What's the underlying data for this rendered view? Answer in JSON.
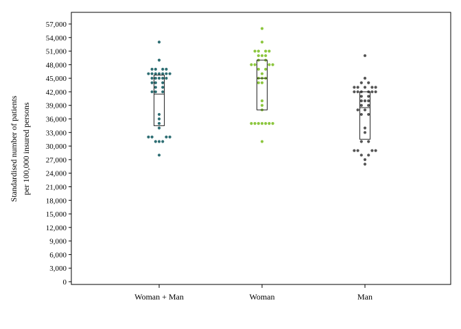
{
  "chart_data": {
    "type": "scatter",
    "subtype": "dot-strip-with-box",
    "title": "",
    "xlabel": "",
    "ylabel": [
      "Standardised number of patients",
      "per 100,000 insured persons"
    ],
    "ylim": [
      0,
      58500
    ],
    "yticks": [
      0,
      3000,
      6000,
      9000,
      12000,
      15000,
      18000,
      21000,
      24000,
      27000,
      30000,
      33000,
      36000,
      39000,
      42000,
      45000,
      48000,
      51000,
      54000,
      57000
    ],
    "ytick_labels": [
      "0",
      "3,000",
      "6,000",
      "9,000",
      "12,000",
      "15,000",
      "18,000",
      "21,000",
      "24,000",
      "27,000",
      "30,000",
      "33,000",
      "36,000",
      "39,000",
      "42,000",
      "45,000",
      "48,000",
      "51,000",
      "54,000",
      "57,000"
    ],
    "grid": false,
    "legend": "none",
    "categories": [
      "Woman + Man",
      "Woman",
      "Man"
    ],
    "series": [
      {
        "category": "Woman + Man",
        "color": "#2e6e73",
        "box": {
          "q1": 34500,
          "median": 41500,
          "q3": 45700
        },
        "points": [
          [
            0,
            53000
          ],
          [
            0,
            49000
          ],
          [
            -2,
            47000
          ],
          [
            -1,
            47000
          ],
          [
            1,
            47000
          ],
          [
            2,
            47000
          ],
          [
            -3,
            46000
          ],
          [
            -2,
            46000
          ],
          [
            -1,
            46000
          ],
          [
            0,
            46000
          ],
          [
            1,
            46000
          ],
          [
            2,
            46000
          ],
          [
            3,
            46000
          ],
          [
            -2,
            45000
          ],
          [
            -1,
            45000
          ],
          [
            0,
            45000
          ],
          [
            1,
            45000
          ],
          [
            2,
            45000
          ],
          [
            -2,
            44000
          ],
          [
            -1,
            44000
          ],
          [
            1,
            44000
          ],
          [
            -1,
            43000
          ],
          [
            1,
            43000
          ],
          [
            -2,
            42000
          ],
          [
            -1,
            42000
          ],
          [
            1,
            42000
          ],
          [
            0,
            37000
          ],
          [
            0,
            36000
          ],
          [
            0,
            35000
          ],
          [
            0,
            34000
          ],
          [
            -3,
            32000
          ],
          [
            -2,
            32000
          ],
          [
            2,
            32000
          ],
          [
            3,
            32000
          ],
          [
            -1,
            31000
          ],
          [
            0,
            31000
          ],
          [
            1,
            31000
          ],
          [
            0,
            28000
          ]
        ]
      },
      {
        "category": "Woman",
        "color": "#8cc63f",
        "box": {
          "q1": 38000,
          "median": 45000,
          "q3": 49000
        },
        "points": [
          [
            0,
            56000
          ],
          [
            0,
            53000
          ],
          [
            -2,
            51000
          ],
          [
            -1,
            51000
          ],
          [
            1,
            51000
          ],
          [
            2,
            51000
          ],
          [
            -1,
            50000
          ],
          [
            0,
            50000
          ],
          [
            1,
            50000
          ],
          [
            -1,
            49000
          ],
          [
            1,
            49000
          ],
          [
            -3,
            48000
          ],
          [
            -2,
            48000
          ],
          [
            2,
            48000
          ],
          [
            3,
            48000
          ],
          [
            -1,
            47000
          ],
          [
            1,
            47000
          ],
          [
            0,
            46000
          ],
          [
            -1,
            45000
          ],
          [
            0,
            45000
          ],
          [
            1,
            45000
          ],
          [
            -1,
            44000
          ],
          [
            0,
            44000
          ],
          [
            0,
            40000
          ],
          [
            0,
            39000
          ],
          [
            0,
            38000
          ],
          [
            -3,
            35000
          ],
          [
            -2,
            35000
          ],
          [
            -1,
            35000
          ],
          [
            0,
            35000
          ],
          [
            1,
            35000
          ],
          [
            2,
            35000
          ],
          [
            3,
            35000
          ],
          [
            0,
            31000
          ]
        ]
      },
      {
        "category": "Man",
        "color": "#555555",
        "box": {
          "q1": 31500,
          "median": 38500,
          "q3": 42000
        },
        "points": [
          [
            0,
            50000
          ],
          [
            0,
            45000
          ],
          [
            -1,
            44000
          ],
          [
            1,
            44000
          ],
          [
            0,
            43000
          ],
          [
            -3,
            43000
          ],
          [
            -2,
            43000
          ],
          [
            2,
            43000
          ],
          [
            3,
            43000
          ],
          [
            -3,
            42000
          ],
          [
            -2,
            42000
          ],
          [
            -1,
            42000
          ],
          [
            1,
            42000
          ],
          [
            2,
            42000
          ],
          [
            3,
            42000
          ],
          [
            -1,
            41000
          ],
          [
            1,
            41000
          ],
          [
            -1,
            40000
          ],
          [
            0,
            40000
          ],
          [
            1,
            40000
          ],
          [
            -1,
            39000
          ],
          [
            1,
            39000
          ],
          [
            -2,
            38000
          ],
          [
            0,
            38000
          ],
          [
            -1,
            37000
          ],
          [
            1,
            37000
          ],
          [
            0,
            34000
          ],
          [
            0,
            33000
          ],
          [
            -1,
            31000
          ],
          [
            1,
            31000
          ],
          [
            -3,
            29000
          ],
          [
            -2,
            29000
          ],
          [
            2,
            29000
          ],
          [
            3,
            29000
          ],
          [
            -1,
            28000
          ],
          [
            1,
            28000
          ],
          [
            0,
            27000
          ],
          [
            0,
            26000
          ]
        ]
      }
    ]
  }
}
